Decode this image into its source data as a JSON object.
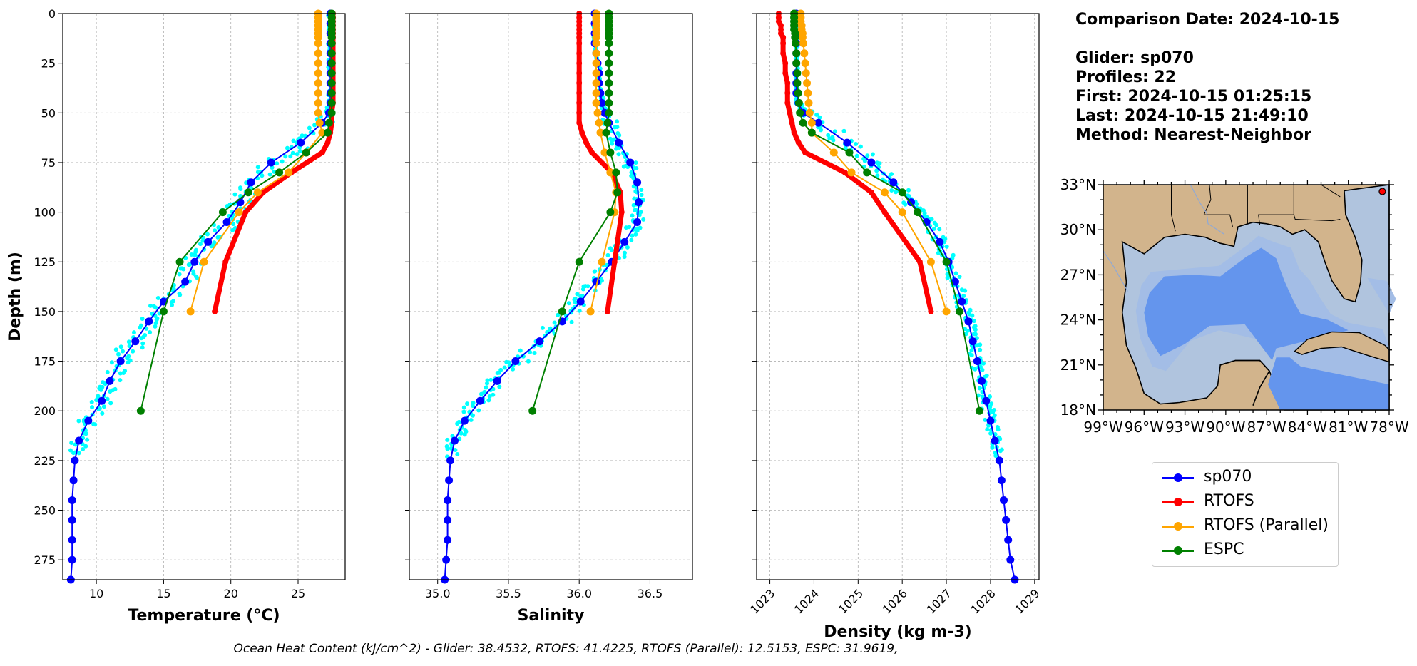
{
  "info": {
    "comparison_date": "Comparison Date: 2024-10-15",
    "glider": "Glider: sp070",
    "profiles": "Profiles: 22",
    "first": "First: 2024-10-15 01:25:15",
    "last": "Last: 2024-10-15 21:49:10",
    "method": "Method: Nearest-Neighbor"
  },
  "footer": "Ocean Heat Content (kJ/cm^2) - Glider: 38.4532,  RTOFS: 41.4225,  RTOFS (Parallel): 12.5153,  ESPC: 31.9619,",
  "legend": [
    {
      "label": "sp070",
      "color": "#0000ff"
    },
    {
      "label": "RTOFS",
      "color": "#ff0000"
    },
    {
      "label": "RTOFS (Parallel)",
      "color": "#ffa500"
    },
    {
      "label": "ESPC",
      "color": "#008000"
    }
  ],
  "map": {
    "lat_ticks": [
      "33°N",
      "30°N",
      "27°N",
      "24°N",
      "21°N",
      "18°N"
    ],
    "lon_ticks": [
      "99°W",
      "96°W",
      "93°W",
      "90°W",
      "87°W",
      "84°W",
      "81°W",
      "78°W"
    ],
    "land_color": "#d2b48c",
    "shelf_color": "#b0c4de",
    "deep_color": "#6495ed"
  },
  "chart_data": [
    {
      "type": "line",
      "xlabel": "Temperature (°C)",
      "ylabel": "Depth (m)",
      "xlim": [
        7.5,
        28.5
      ],
      "ylim": [
        285,
        0
      ],
      "xticks": [
        10,
        15,
        20,
        25
      ],
      "yticks": [
        0,
        25,
        50,
        75,
        100,
        125,
        150,
        175,
        200,
        225,
        250,
        275
      ],
      "grid": true,
      "series": [
        {
          "name": "sp070",
          "color": "#0000ff",
          "depth": [
            0,
            5,
            10,
            15,
            20,
            25,
            30,
            35,
            40,
            45,
            50,
            55,
            65,
            75,
            85,
            95,
            105,
            115,
            125,
            135,
            145,
            155,
            165,
            175,
            185,
            195,
            205,
            215,
            225,
            235,
            245,
            255,
            265,
            275,
            285
          ],
          "values": [
            27.4,
            27.4,
            27.4,
            27.4,
            27.4,
            27.4,
            27.4,
            27.4,
            27.4,
            27.4,
            27.3,
            26.8,
            25.2,
            23.0,
            21.5,
            20.7,
            19.7,
            18.3,
            17.3,
            16.6,
            15.0,
            13.9,
            12.9,
            11.8,
            11.0,
            10.4,
            9.4,
            8.7,
            8.4,
            8.3,
            8.2,
            8.2,
            8.2,
            8.2,
            8.1
          ]
        },
        {
          "name": "RTOFS",
          "color": "#ff0000",
          "depth": [
            0,
            2,
            4,
            6,
            8,
            10,
            12,
            15,
            20,
            25,
            30,
            35,
            40,
            45,
            50,
            55,
            60,
            65,
            70,
            80,
            90,
            100,
            125,
            150
          ],
          "values": [
            27.6,
            27.6,
            27.6,
            27.6,
            27.6,
            27.6,
            27.6,
            27.6,
            27.6,
            27.6,
            27.6,
            27.6,
            27.6,
            27.6,
            27.5,
            27.5,
            27.4,
            27.2,
            26.8,
            24.5,
            22.4,
            21.1,
            19.6,
            18.8
          ]
        },
        {
          "name": "RTOFS (Parallel)",
          "color": "#ffa500",
          "depth": [
            0,
            2,
            4,
            6,
            8,
            10,
            12,
            15,
            20,
            25,
            30,
            35,
            40,
            45,
            50,
            55,
            60,
            70,
            80,
            90,
            100,
            125,
            150
          ],
          "values": [
            26.5,
            26.5,
            26.5,
            26.5,
            26.5,
            26.5,
            26.5,
            26.5,
            26.5,
            26.5,
            26.5,
            26.5,
            26.5,
            26.5,
            26.5,
            26.6,
            26.8,
            25.6,
            24.3,
            22.0,
            20.6,
            18.0,
            17.0
          ]
        },
        {
          "name": "ESPC",
          "color": "#008000",
          "depth": [
            0,
            2,
            4,
            6,
            8,
            10,
            12,
            15,
            20,
            25,
            30,
            35,
            40,
            45,
            50,
            55,
            60,
            70,
            80,
            90,
            100,
            125,
            150,
            200
          ],
          "values": [
            27.5,
            27.5,
            27.5,
            27.5,
            27.5,
            27.5,
            27.5,
            27.5,
            27.5,
            27.5,
            27.5,
            27.5,
            27.5,
            27.5,
            27.5,
            27.3,
            27.2,
            25.6,
            23.6,
            21.3,
            19.4,
            16.2,
            15.0,
            13.3
          ]
        }
      ]
    },
    {
      "type": "line",
      "xlabel": "Salinity",
      "xlim": [
        34.8,
        36.8
      ],
      "ylim": [
        285,
        0
      ],
      "xticks": [
        35.0,
        35.5,
        36.0,
        36.5
      ],
      "yticks": [
        0,
        25,
        50,
        75,
        100,
        125,
        150,
        175,
        200,
        225,
        250,
        275
      ],
      "grid": true,
      "series": [
        {
          "name": "sp070",
          "color": "#0000ff",
          "depth": [
            0,
            5,
            10,
            15,
            20,
            25,
            30,
            35,
            40,
            45,
            50,
            55,
            65,
            75,
            85,
            95,
            105,
            115,
            125,
            135,
            145,
            155,
            165,
            175,
            185,
            195,
            205,
            215,
            225,
            235,
            245,
            255,
            265,
            275,
            285
          ],
          "values": [
            36.11,
            36.11,
            36.11,
            36.11,
            36.12,
            36.13,
            36.14,
            36.14,
            36.15,
            36.16,
            36.18,
            36.21,
            36.28,
            36.36,
            36.41,
            36.42,
            36.41,
            36.32,
            36.23,
            36.12,
            36.01,
            35.88,
            35.72,
            35.55,
            35.42,
            35.3,
            35.19,
            35.12,
            35.09,
            35.08,
            35.07,
            35.07,
            35.07,
            35.06,
            35.05
          ]
        },
        {
          "name": "RTOFS",
          "color": "#ff0000",
          "depth": [
            0,
            2,
            4,
            6,
            8,
            10,
            12,
            15,
            20,
            25,
            30,
            35,
            40,
            45,
            50,
            55,
            60,
            65,
            70,
            80,
            90,
            100,
            125,
            150
          ],
          "values": [
            36.0,
            36.0,
            36.0,
            36.0,
            36.0,
            36.0,
            36.0,
            36.0,
            36.0,
            36.0,
            36.0,
            36.0,
            36.0,
            36.0,
            36.0,
            36.0,
            36.02,
            36.05,
            36.09,
            36.23,
            36.29,
            36.3,
            36.25,
            36.2
          ]
        },
        {
          "name": "RTOFS (Parallel)",
          "color": "#ffa500",
          "depth": [
            0,
            2,
            4,
            6,
            8,
            10,
            12,
            15,
            20,
            25,
            30,
            35,
            40,
            45,
            50,
            55,
            60,
            70,
            80,
            90,
            100,
            125,
            150
          ],
          "values": [
            36.12,
            36.12,
            36.12,
            36.12,
            36.12,
            36.12,
            36.12,
            36.12,
            36.12,
            36.12,
            36.12,
            36.12,
            36.12,
            36.12,
            36.13,
            36.14,
            36.15,
            36.18,
            36.22,
            36.26,
            36.25,
            36.16,
            36.08
          ]
        },
        {
          "name": "ESPC",
          "color": "#008000",
          "depth": [
            0,
            2,
            4,
            6,
            8,
            10,
            12,
            15,
            20,
            25,
            30,
            35,
            40,
            45,
            50,
            55,
            60,
            70,
            80,
            90,
            100,
            125,
            150,
            200
          ],
          "values": [
            36.21,
            36.21,
            36.21,
            36.21,
            36.21,
            36.21,
            36.21,
            36.21,
            36.21,
            36.21,
            36.21,
            36.21,
            36.21,
            36.21,
            36.21,
            36.2,
            36.19,
            36.22,
            36.26,
            36.27,
            36.22,
            36.0,
            35.88,
            35.67
          ]
        }
      ]
    },
    {
      "type": "line",
      "xlabel": "Density (kg m-3)",
      "xlim": [
        1022.7,
        1029.1
      ],
      "ylim": [
        285,
        0
      ],
      "xticks": [
        1023,
        1024,
        1025,
        1026,
        1027,
        1028,
        1029
      ],
      "yticks": [
        0,
        25,
        50,
        75,
        100,
        125,
        150,
        175,
        200,
        225,
        250,
        275
      ],
      "grid": true,
      "series": [
        {
          "name": "sp070",
          "color": "#0000ff",
          "depth": [
            0,
            5,
            10,
            15,
            20,
            25,
            30,
            35,
            40,
            45,
            50,
            55,
            65,
            75,
            85,
            95,
            105,
            115,
            125,
            135,
            145,
            155,
            165,
            175,
            185,
            195,
            205,
            215,
            225,
            235,
            245,
            255,
            265,
            275,
            285
          ],
          "values": [
            1023.6,
            1023.6,
            1023.6,
            1023.6,
            1023.6,
            1023.6,
            1023.6,
            1023.6,
            1023.6,
            1023.65,
            1023.75,
            1024.1,
            1024.75,
            1025.3,
            1025.8,
            1026.2,
            1026.55,
            1026.85,
            1027.05,
            1027.2,
            1027.35,
            1027.5,
            1027.6,
            1027.7,
            1027.8,
            1027.9,
            1028.0,
            1028.1,
            1028.2,
            1028.25,
            1028.3,
            1028.35,
            1028.4,
            1028.45,
            1028.55
          ]
        },
        {
          "name": "RTOFS",
          "color": "#ff0000",
          "depth": [
            0,
            2,
            4,
            6,
            8,
            10,
            12,
            15,
            20,
            25,
            30,
            35,
            40,
            45,
            50,
            55,
            60,
            65,
            70,
            80,
            90,
            100,
            125,
            150
          ],
          "values": [
            1023.2,
            1023.2,
            1023.2,
            1023.25,
            1023.25,
            1023.25,
            1023.3,
            1023.3,
            1023.3,
            1023.35,
            1023.35,
            1023.4,
            1023.4,
            1023.4,
            1023.45,
            1023.5,
            1023.55,
            1023.65,
            1023.8,
            1024.7,
            1025.3,
            1025.6,
            1026.4,
            1026.65
          ]
        },
        {
          "name": "RTOFS (Parallel)",
          "color": "#ffa500",
          "depth": [
            0,
            2,
            4,
            6,
            8,
            10,
            12,
            15,
            20,
            25,
            30,
            35,
            40,
            45,
            50,
            55,
            60,
            70,
            80,
            90,
            100,
            125,
            150
          ],
          "values": [
            1023.7,
            1023.7,
            1023.7,
            1023.72,
            1023.72,
            1023.74,
            1023.74,
            1023.76,
            1023.78,
            1023.8,
            1023.82,
            1023.84,
            1023.86,
            1023.88,
            1023.9,
            1023.95,
            1023.95,
            1024.45,
            1024.85,
            1025.6,
            1026.0,
            1026.65,
            1027.0
          ]
        },
        {
          "name": "ESPC",
          "color": "#008000",
          "depth": [
            0,
            2,
            4,
            6,
            8,
            10,
            12,
            15,
            20,
            25,
            30,
            35,
            40,
            45,
            50,
            55,
            60,
            70,
            80,
            90,
            100,
            125,
            150,
            200
          ],
          "values": [
            1023.55,
            1023.55,
            1023.55,
            1023.55,
            1023.55,
            1023.57,
            1023.57,
            1023.58,
            1023.6,
            1023.6,
            1023.62,
            1023.62,
            1023.64,
            1023.66,
            1023.68,
            1023.75,
            1023.95,
            1024.8,
            1025.2,
            1026.0,
            1026.35,
            1027.0,
            1027.3,
            1027.75
          ]
        }
      ]
    }
  ]
}
